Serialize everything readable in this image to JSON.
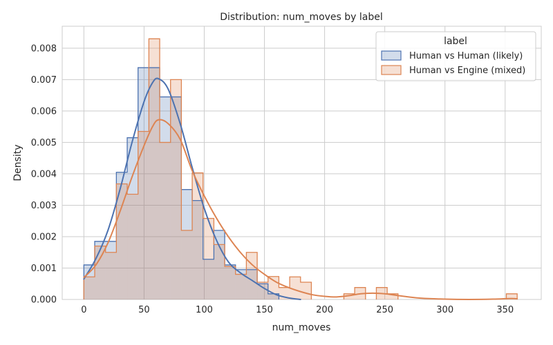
{
  "chart_data": {
    "type": "histogram",
    "title": "Distribution: num_moves by label",
    "xlabel": "num_moves",
    "ylabel": "Density",
    "xlim": [
      -18,
      380
    ],
    "ylim": [
      0,
      0.0087
    ],
    "x_ticks": [
      0,
      50,
      100,
      150,
      200,
      250,
      300,
      350
    ],
    "y_ticks": [
      0.0,
      0.001,
      0.002,
      0.003,
      0.004,
      0.005,
      0.006,
      0.007,
      0.008
    ],
    "x_tick_labels": [
      "0",
      "50",
      "100",
      "150",
      "200",
      "250",
      "300",
      "350"
    ],
    "y_tick_labels": [
      "0.000",
      "0.001",
      "0.002",
      "0.003",
      "0.004",
      "0.005",
      "0.006",
      "0.007",
      "0.008"
    ],
    "grid": true,
    "legend": {
      "title": "label",
      "placement": "top-right",
      "entries": [
        {
          "label": "Human vs Human (likely)",
          "color": "#4C72B0"
        },
        {
          "label": "Human vs Engine (mixed)",
          "color": "#DD8452"
        }
      ]
    },
    "series": [
      {
        "name": "Human vs Human (likely)",
        "color": "#4C72B0",
        "bins": [
          [
            0,
            9,
            0.0011
          ],
          [
            9,
            27,
            0.00185
          ],
          [
            27,
            36,
            0.00405
          ],
          [
            36,
            45,
            0.00515
          ],
          [
            45,
            63,
            0.00738
          ],
          [
            63,
            81,
            0.00645
          ],
          [
            81,
            90,
            0.0035
          ],
          [
            90,
            99,
            0.00315
          ],
          [
            99,
            108,
            0.00128
          ],
          [
            108,
            117,
            0.0022
          ],
          [
            117,
            126,
            0.0011
          ],
          [
            126,
            144,
            0.00095
          ],
          [
            144,
            153,
            0.0005
          ],
          [
            153,
            162,
            0.00018
          ]
        ],
        "kde": [
          [
            0,
            0.00065
          ],
          [
            10,
            0.0013
          ],
          [
            20,
            0.0022
          ],
          [
            30,
            0.0035
          ],
          [
            40,
            0.005
          ],
          [
            50,
            0.0063
          ],
          [
            57,
            0.0069
          ],
          [
            62,
            0.00703
          ],
          [
            70,
            0.0067
          ],
          [
            80,
            0.0056
          ],
          [
            90,
            0.0042
          ],
          [
            100,
            0.0029
          ],
          [
            110,
            0.0019
          ],
          [
            120,
            0.0012
          ],
          [
            130,
            0.00085
          ],
          [
            140,
            0.0006
          ],
          [
            150,
            0.00035
          ],
          [
            160,
            0.00015
          ],
          [
            170,
            5e-05
          ],
          [
            180,
            0.0
          ]
        ]
      },
      {
        "name": "Human vs Engine (mixed)",
        "color": "#DD8452",
        "bins": [
          [
            0,
            9,
            0.00072
          ],
          [
            9,
            18,
            0.0017
          ],
          [
            18,
            27,
            0.0015
          ],
          [
            27,
            36,
            0.00368
          ],
          [
            36,
            45,
            0.00335
          ],
          [
            45,
            54,
            0.00535
          ],
          [
            54,
            63,
            0.0083
          ],
          [
            63,
            72,
            0.005
          ],
          [
            72,
            81,
            0.007
          ],
          [
            81,
            90,
            0.0022
          ],
          [
            90,
            99,
            0.00403
          ],
          [
            99,
            108,
            0.00258
          ],
          [
            108,
            117,
            0.00175
          ],
          [
            117,
            126,
            0.00105
          ],
          [
            126,
            135,
            0.0008
          ],
          [
            135,
            144,
            0.0015
          ],
          [
            144,
            153,
            0.00055
          ],
          [
            153,
            162,
            0.00073
          ],
          [
            162,
            171,
            0.00038
          ],
          [
            171,
            180,
            0.00072
          ],
          [
            180,
            189,
            0.00055
          ],
          [
            216,
            225,
            0.00018
          ],
          [
            225,
            234,
            0.00038
          ],
          [
            243,
            252,
            0.00038
          ],
          [
            252,
            261,
            0.00018
          ],
          [
            351,
            360,
            0.00018
          ]
        ],
        "kde": [
          [
            0,
            0.0007
          ],
          [
            10,
            0.0011
          ],
          [
            20,
            0.0018
          ],
          [
            30,
            0.0028
          ],
          [
            40,
            0.0039
          ],
          [
            50,
            0.0049
          ],
          [
            57,
            0.0055
          ],
          [
            62,
            0.00572
          ],
          [
            70,
            0.0056
          ],
          [
            80,
            0.0051
          ],
          [
            90,
            0.0041
          ],
          [
            100,
            0.0033
          ],
          [
            110,
            0.0026
          ],
          [
            120,
            0.002
          ],
          [
            130,
            0.0015
          ],
          [
            140,
            0.0011
          ],
          [
            150,
            0.0008
          ],
          [
            160,
            0.00055
          ],
          [
            170,
            0.00038
          ],
          [
            180,
            0.00025
          ],
          [
            190,
            0.00015
          ],
          [
            200,
            0.0001
          ],
          [
            210,
            8e-05
          ],
          [
            220,
            0.00012
          ],
          [
            230,
            0.00018
          ],
          [
            240,
            0.0002
          ],
          [
            250,
            0.00018
          ],
          [
            260,
            0.00013
          ],
          [
            270,
            8e-05
          ],
          [
            280,
            4e-05
          ],
          [
            300,
            1e-05
          ],
          [
            320,
            0.0
          ],
          [
            340,
            1e-05
          ],
          [
            355,
            3e-05
          ],
          [
            360,
            2e-05
          ]
        ]
      }
    ]
  }
}
